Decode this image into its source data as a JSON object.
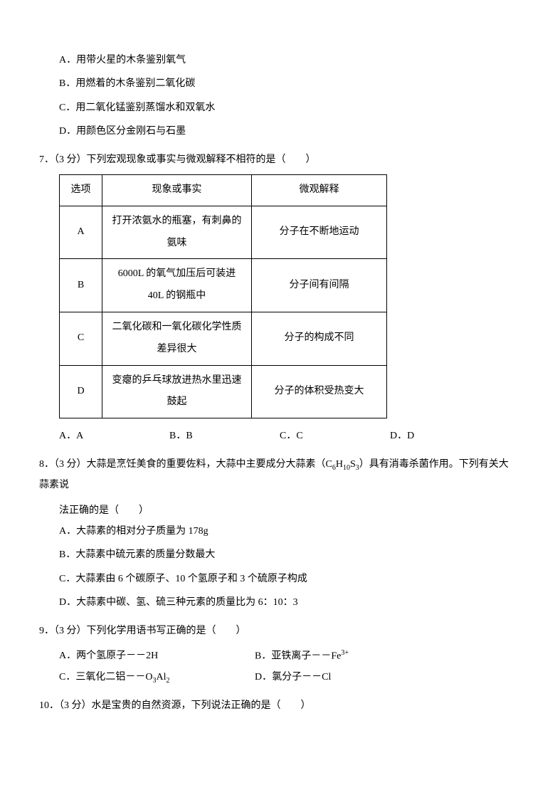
{
  "q6_options": {
    "A": "A．用带火星的木条鉴别氧气",
    "B": "B．用燃着的木条鉴别二氧化碳",
    "C": "C．用二氧化锰鉴别蒸馏水和双氧水",
    "D": "D．用颜色区分金刚石与石墨"
  },
  "q7": {
    "stem": "7．（3 分）下列宏观现象或事实与微观解释不相符的是（　　）",
    "headers": {
      "opt": "选项",
      "fact": "现象或事实",
      "exp": "微观解释"
    },
    "rows": [
      {
        "opt": "A",
        "fact_l1": "打开浓氨水的瓶塞，有刺鼻的",
        "fact_l2": "氨味",
        "exp": "分子在不断地运动"
      },
      {
        "opt": "B",
        "fact_l1": "6000L 的氧气加压后可装进",
        "fact_l2": "40L 的钢瓶中",
        "exp": "分子间有间隔"
      },
      {
        "opt": "C",
        "fact_l1": "二氧化碳和一氧化碳化学性质",
        "fact_l2": "差异很大",
        "exp": "分子的构成不同"
      },
      {
        "opt": "D",
        "fact_l1": "变瘪的乒乓球放进热水里迅速",
        "fact_l2": "鼓起",
        "exp": "分子的体积受热变大"
      }
    ],
    "choices": {
      "A": "A．A",
      "B": "B．B",
      "C": "C．C",
      "D": "D．D"
    }
  },
  "q8": {
    "stem_pre": "8．（3 分）大蒜是烹饪美食的重要佐料，大蒜中主要成分大蒜素（C",
    "stem_sub1": "6",
    "stem_mid1": "H",
    "stem_sub2": "10",
    "stem_mid2": "S",
    "stem_sub3": "3",
    "stem_post": "）具有消毒杀菌作用。下列有关大蒜素说",
    "stem_line2": "法正确的是（　　）",
    "options": {
      "A": "A．大蒜素的相对分子质量为 178g",
      "B": "B．大蒜素中硫元素的质量分数最大",
      "C": "C．大蒜素由 6 个碳原子、10 个氢原子和 3 个硫原子构成",
      "D": "D．大蒜素中碳、氢、硫三种元素的质量比为 6：10：3"
    }
  },
  "q9": {
    "stem": "9．（3 分）下列化学用语书写正确的是（　　）",
    "A_pre": "A．两个氢原子－－2H",
    "B_pre": "B．亚铁离子－－Fe",
    "B_sup": "3+",
    "C_pre": "C．三氧化二铝－－O",
    "C_sub1": "3",
    "C_mid": "Al",
    "C_sub2": "2",
    "D_pre": "D．氯分子－－Cl"
  },
  "q10": {
    "stem": "10．（3 分）水是宝贵的自然资源，下列说法正确的是（　　）"
  }
}
